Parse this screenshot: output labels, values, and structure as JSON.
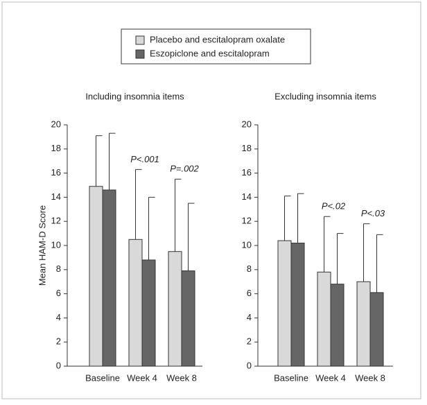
{
  "chart_data": [
    {
      "type": "bar",
      "title": "Including insomnia items",
      "y_label": "Mean HAM-D Score",
      "categories": [
        "Baseline",
        "Week 4",
        "Week 8"
      ],
      "series": [
        {
          "name": "Placebo and escitalopram oxalate",
          "color": "#d9d9d9",
          "values": [
            14.9,
            10.5,
            9.5
          ],
          "errors": [
            4.2,
            5.8,
            6.0
          ]
        },
        {
          "name": "Eszopiclone and escitalopram",
          "color": "#666666",
          "values": [
            14.6,
            8.8,
            7.9
          ],
          "errors": [
            4.7,
            5.2,
            5.6
          ]
        }
      ],
      "annotations": [
        null,
        "P<.001",
        "P=.002"
      ],
      "ylim": [
        0,
        20
      ],
      "yticks": [
        0,
        2,
        4,
        6,
        8,
        10,
        12,
        14,
        16,
        18,
        20
      ]
    },
    {
      "type": "bar",
      "title": "Excluding insomnia items",
      "categories": [
        "Baseline",
        "Week 4",
        "Week 8"
      ],
      "series": [
        {
          "color": "#d9d9d9",
          "values": [
            10.4,
            7.8,
            7.0
          ],
          "errors": [
            3.7,
            4.6,
            4.8
          ]
        },
        {
          "color": "#666666",
          "values": [
            10.2,
            6.8,
            6.1
          ],
          "errors": [
            4.1,
            4.2,
            4.8
          ]
        }
      ],
      "annotations": [
        null,
        "P<.02",
        "P<.03"
      ],
      "ylim": [
        0,
        20
      ],
      "yticks": [
        0,
        2,
        4,
        6,
        8,
        10,
        12,
        14,
        16,
        18,
        20
      ]
    }
  ]
}
